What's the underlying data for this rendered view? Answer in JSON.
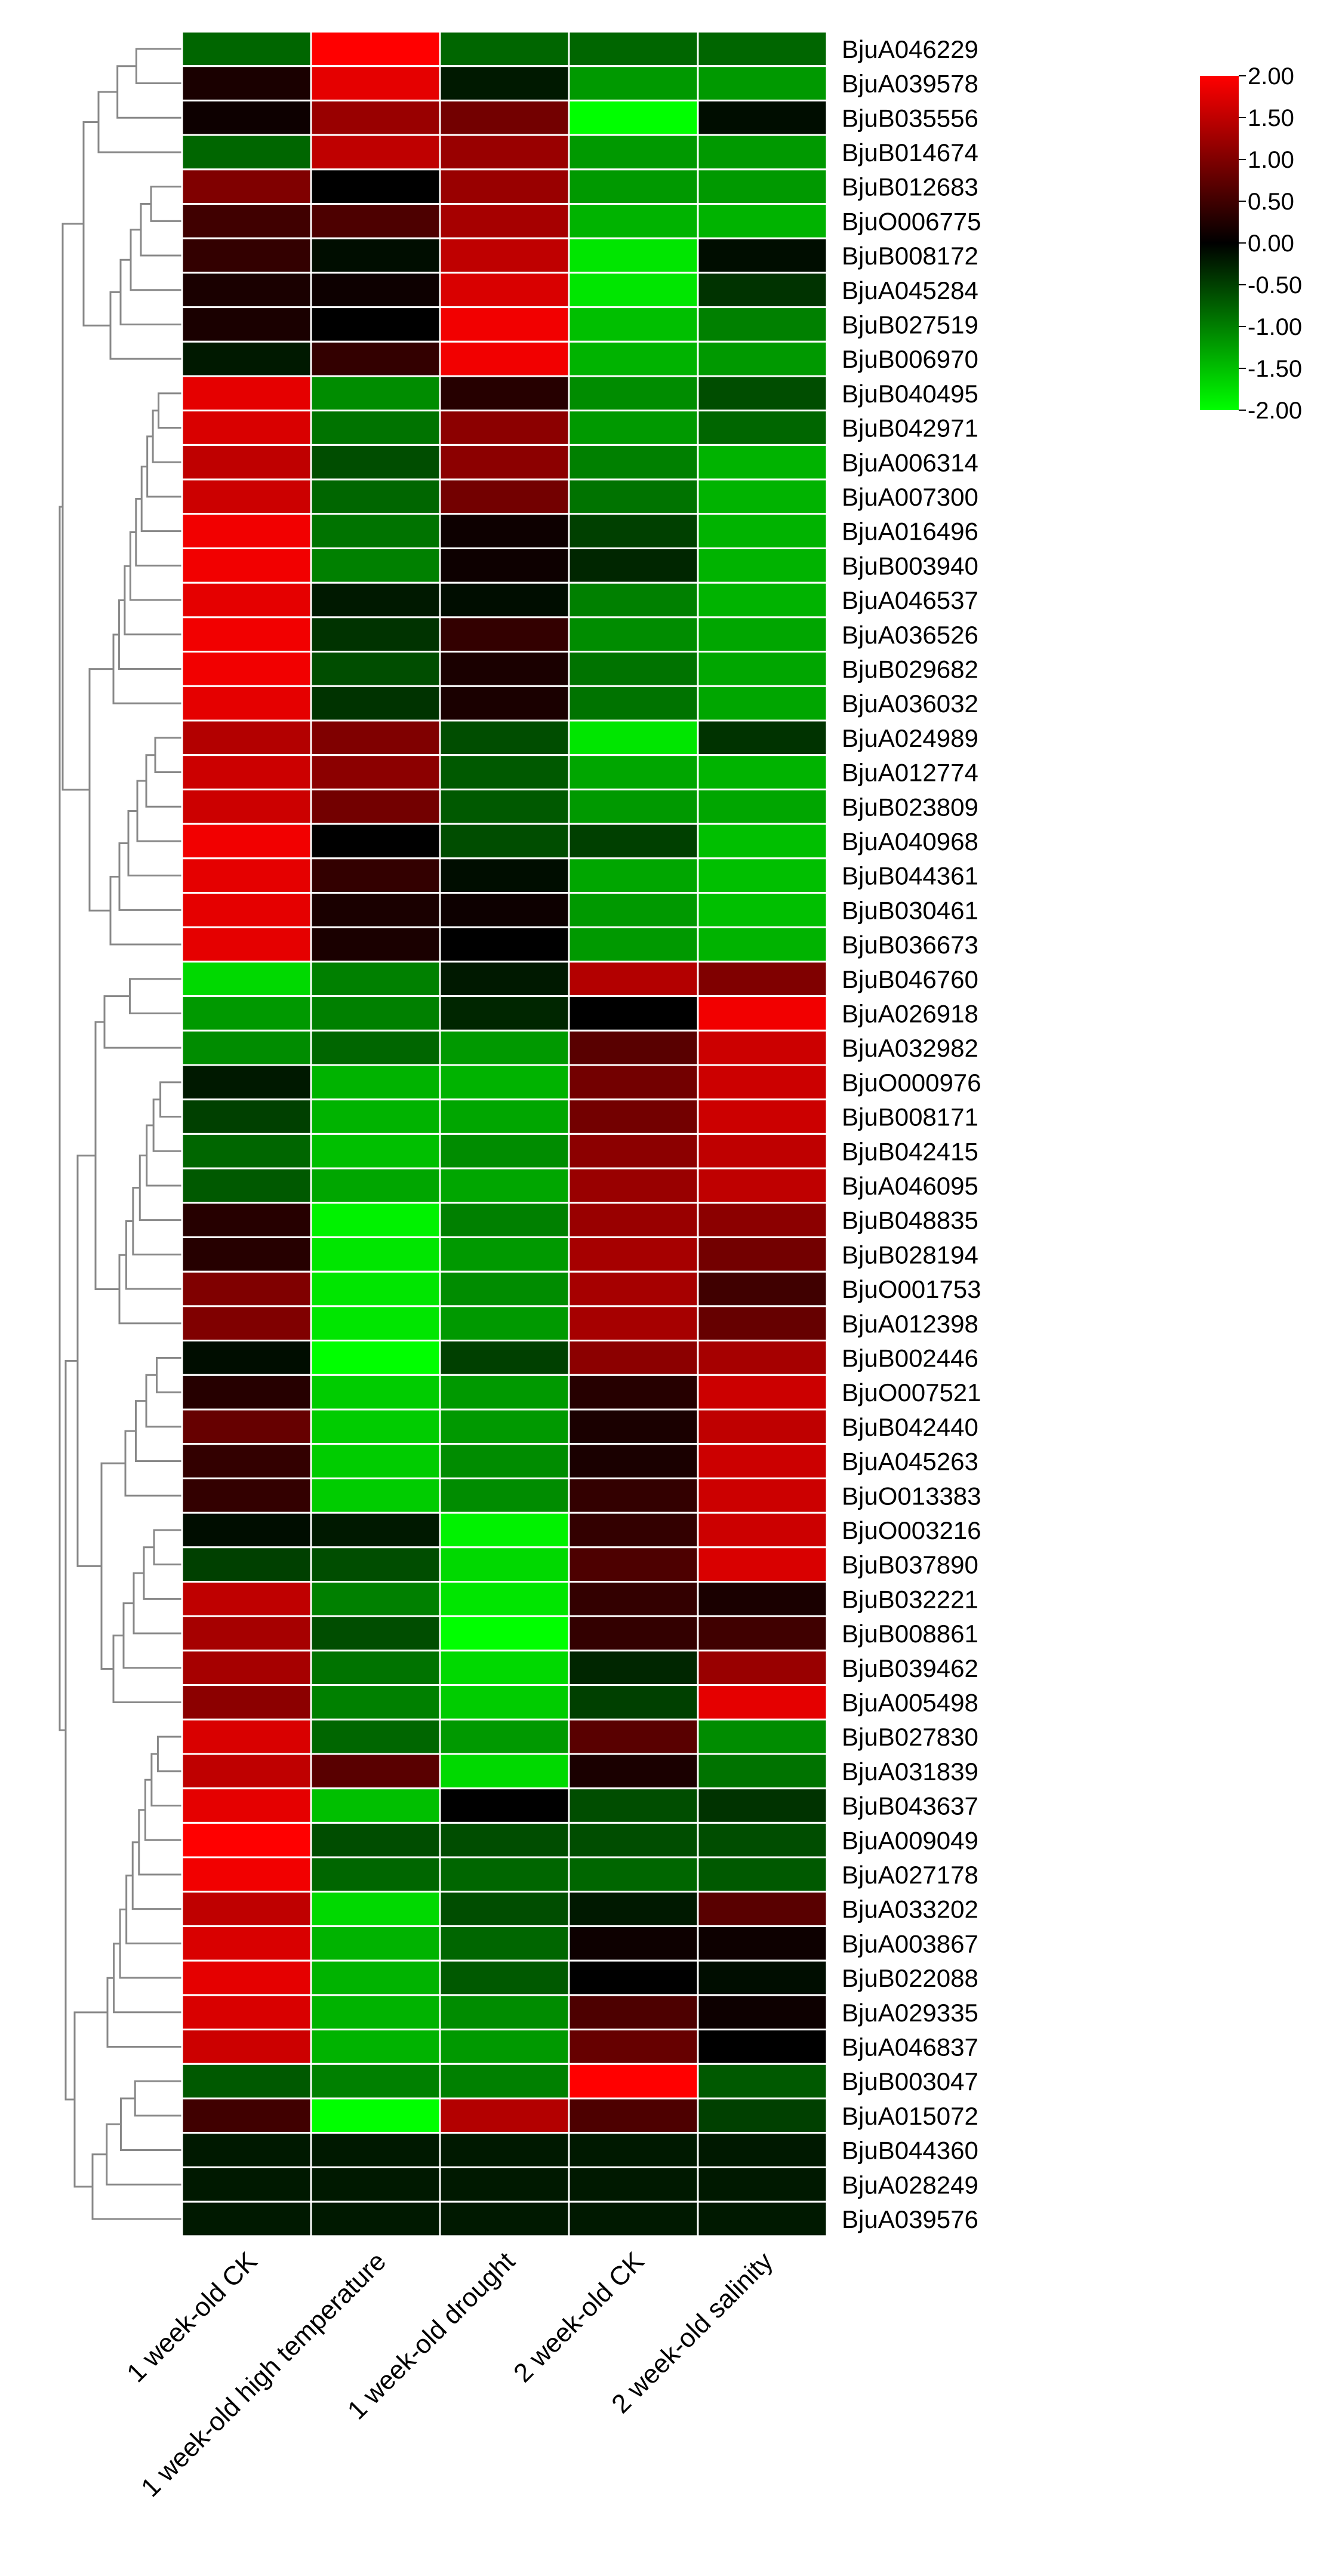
{
  "chart_data": {
    "type": "heatmap",
    "title": "",
    "columns": [
      "1 week-old CK",
      "1 week-old high temperature",
      "1 week-old drought",
      "2 week-old CK",
      "2 week-old salinity"
    ],
    "rows": [
      "BjuA046229",
      "BjuA039578",
      "BjuB035556",
      "BjuB014674",
      "BjuB012683",
      "BjuO006775",
      "BjuB008172",
      "BjuA045284",
      "BjuB027519",
      "BjuB006970",
      "BjuB040495",
      "BjuB042971",
      "BjuA006314",
      "BjuA007300",
      "BjuA016496",
      "BjuB003940",
      "BjuA046537",
      "BjuA036526",
      "BjuB029682",
      "BjuA036032",
      "BjuA024989",
      "BjuA012774",
      "BjuB023809",
      "BjuA040968",
      "BjuB044361",
      "BjuB030461",
      "BjuB036673",
      "BjuB046760",
      "BjuA026918",
      "BjuA032982",
      "BjuO000976",
      "BjuB008171",
      "BjuB042415",
      "BjuA046095",
      "BjuB048835",
      "BjuB028194",
      "BjuO001753",
      "BjuA012398",
      "BjuB002446",
      "BjuO007521",
      "BjuB042440",
      "BjuA045263",
      "BjuO013383",
      "BjuO003216",
      "BjuB037890",
      "BjuB032221",
      "BjuB008861",
      "BjuB039462",
      "BjuA005498",
      "BjuB027830",
      "BjuA031839",
      "BjuB043637",
      "BjuA009049",
      "BjuA027178",
      "BjuA033202",
      "BjuA003867",
      "BjuB022088",
      "BjuA029335",
      "BjuA046837",
      "BjuB003047",
      "BjuA015072",
      "BjuB044360",
      "BjuA028249",
      "BjuA039576"
    ],
    "values": [
      [
        -0.8,
        2.0,
        -0.8,
        -0.8,
        -0.8
      ],
      [
        0.2,
        1.8,
        -0.2,
        -1.2,
        -1.2
      ],
      [
        0.1,
        1.2,
        0.9,
        -2.0,
        -0.1
      ],
      [
        -0.8,
        1.5,
        1.2,
        -1.2,
        -1.2
      ],
      [
        1.0,
        0.0,
        1.2,
        -1.2,
        -1.2
      ],
      [
        0.5,
        0.6,
        1.3,
        -1.4,
        -1.4
      ],
      [
        0.4,
        -0.1,
        1.5,
        -1.8,
        -0.1
      ],
      [
        0.2,
        0.1,
        1.7,
        -1.8,
        -0.4
      ],
      [
        0.2,
        0.0,
        1.9,
        -1.5,
        -1.0
      ],
      [
        -0.2,
        0.4,
        1.9,
        -1.4,
        -1.2
      ],
      [
        1.8,
        -1.1,
        0.3,
        -1.1,
        -0.6
      ],
      [
        1.7,
        -0.9,
        1.1,
        -1.2,
        -0.8
      ],
      [
        1.5,
        -0.6,
        1.1,
        -1.0,
        -1.4
      ],
      [
        1.6,
        -0.8,
        0.9,
        -0.9,
        -1.4
      ],
      [
        1.9,
        -0.9,
        0.1,
        -0.5,
        -1.4
      ],
      [
        1.9,
        -1.0,
        0.1,
        -0.3,
        -1.4
      ],
      [
        1.8,
        -0.2,
        -0.1,
        -1.0,
        -1.4
      ],
      [
        1.9,
        -0.4,
        0.4,
        -1.1,
        -1.3
      ],
      [
        1.9,
        -0.6,
        0.2,
        -0.9,
        -1.3
      ],
      [
        1.8,
        -0.4,
        0.2,
        -0.9,
        -1.3
      ],
      [
        1.4,
        1.0,
        -0.6,
        -1.8,
        -0.4
      ],
      [
        1.6,
        1.1,
        -0.7,
        -1.3,
        -1.4
      ],
      [
        1.6,
        0.9,
        -0.7,
        -1.2,
        -1.3
      ],
      [
        1.9,
        0.0,
        -0.6,
        -0.5,
        -1.5
      ],
      [
        1.8,
        0.4,
        -0.1,
        -1.3,
        -1.5
      ],
      [
        1.8,
        0.2,
        0.1,
        -1.2,
        -1.5
      ],
      [
        1.8,
        0.2,
        0.0,
        -1.2,
        -1.4
      ],
      [
        -1.7,
        -1.0,
        -0.2,
        1.4,
        1.0
      ],
      [
        -1.2,
        -1.0,
        -0.3,
        0.0,
        1.9
      ],
      [
        -1.1,
        -0.8,
        -1.2,
        0.7,
        1.6
      ],
      [
        -0.2,
        -1.4,
        -1.4,
        0.9,
        1.6
      ],
      [
        -0.5,
        -1.4,
        -1.3,
        0.9,
        1.6
      ],
      [
        -0.8,
        -1.5,
        -1.1,
        1.1,
        1.5
      ],
      [
        -0.7,
        -1.3,
        -1.3,
        1.2,
        1.5
      ],
      [
        0.3,
        -1.9,
        -1.0,
        1.2,
        1.1
      ],
      [
        0.3,
        -1.8,
        -1.2,
        1.3,
        0.9
      ],
      [
        1.0,
        -1.8,
        -1.1,
        1.3,
        0.5
      ],
      [
        1.0,
        -1.8,
        -1.2,
        1.3,
        0.8
      ],
      [
        -0.1,
        -2.0,
        -0.5,
        1.1,
        1.3
      ],
      [
        0.3,
        -1.6,
        -1.2,
        0.3,
        1.6
      ],
      [
        0.8,
        -1.6,
        -1.2,
        0.2,
        1.5
      ],
      [
        0.4,
        -1.6,
        -1.1,
        0.2,
        1.6
      ],
      [
        0.4,
        -1.6,
        -1.1,
        0.4,
        1.6
      ],
      [
        -0.1,
        -0.2,
        -1.9,
        0.4,
        1.6
      ],
      [
        -0.5,
        -0.6,
        -1.7,
        0.6,
        1.7
      ],
      [
        1.5,
        -1.0,
        -1.8,
        0.4,
        0.2
      ],
      [
        1.3,
        -0.6,
        -2.0,
        0.4,
        0.5
      ],
      [
        1.3,
        -0.9,
        -1.7,
        -0.3,
        1.2
      ],
      [
        1.1,
        -1.0,
        -1.6,
        -0.5,
        1.8
      ],
      [
        1.7,
        -0.8,
        -1.2,
        0.7,
        -1.1
      ],
      [
        1.5,
        0.7,
        -1.7,
        0.2,
        -0.9
      ],
      [
        1.8,
        -1.5,
        0.0,
        -0.6,
        -0.4
      ],
      [
        2.0,
        -0.6,
        -0.6,
        -0.6,
        -0.6
      ],
      [
        1.9,
        -0.8,
        -0.8,
        -0.8,
        -0.7
      ],
      [
        1.5,
        -1.7,
        -0.6,
        -0.2,
        0.7
      ],
      [
        1.7,
        -1.4,
        -0.8,
        0.1,
        0.1
      ],
      [
        1.8,
        -1.4,
        -0.7,
        0.0,
        -0.1
      ],
      [
        1.7,
        -1.4,
        -1.1,
        0.6,
        0.1
      ],
      [
        1.6,
        -1.4,
        -1.2,
        0.8,
        0.0
      ],
      [
        -0.7,
        -1.0,
        -1.0,
        2.0,
        -0.7
      ],
      [
        0.5,
        -2.0,
        1.4,
        0.6,
        -0.5
      ],
      [
        -0.2,
        -0.2,
        -0.2,
        -0.2,
        -0.2
      ],
      [
        -0.2,
        -0.2,
        -0.2,
        -0.2,
        -0.2
      ],
      [
        -0.2,
        -0.2,
        -0.2,
        -0.2,
        -0.2
      ]
    ],
    "color_scale": {
      "min": -2.0,
      "max": 2.0,
      "low_color": "#00ff00",
      "mid_color": "#000000",
      "high_color": "#ff0000",
      "ticks": [
        "2.00",
        "1.50",
        "1.00",
        "0.50",
        "0.00",
        "-0.50",
        "-1.00",
        "-1.50",
        "-2.00"
      ]
    },
    "legend_placement": "top-right",
    "dendrogram": "left"
  }
}
